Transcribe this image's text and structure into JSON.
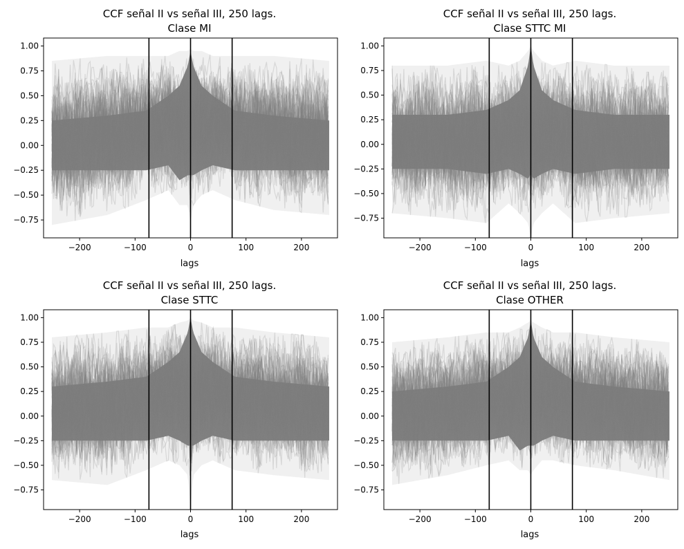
{
  "figure": {
    "background": "#ffffff",
    "trace_color": "#808080",
    "vline_color": "#000000"
  },
  "chart_data": [
    {
      "type": "line",
      "title_line1": "CCF señal II vs señal III, 250 lags.",
      "title_line2": "Clase MI",
      "xlabel": "lags",
      "ylabel": "",
      "xlim": [
        -265,
        265
      ],
      "ylim": [
        -0.93,
        1.08
      ],
      "xticks": [
        -200,
        -100,
        0,
        100,
        200
      ],
      "xtick_labels": [
        "−200",
        "−100",
        "0",
        "100",
        "200"
      ],
      "yticks": [
        -0.75,
        -0.5,
        -0.25,
        0.0,
        0.25,
        0.5,
        0.75,
        1.0
      ],
      "ytick_labels": [
        "−0.75",
        "−0.50",
        "−0.25",
        "0.00",
        "0.25",
        "0.50",
        "0.75",
        "1.00"
      ],
      "vlines": [
        -75,
        0,
        75
      ],
      "lag_range": [
        -250,
        250
      ],
      "envelope_dense": {
        "x": [
          -250,
          -150,
          -80,
          -40,
          -20,
          -5,
          0,
          5,
          20,
          40,
          80,
          150,
          250
        ],
        "upper": [
          0.25,
          0.3,
          0.35,
          0.5,
          0.6,
          0.8,
          0.95,
          0.8,
          0.6,
          0.5,
          0.35,
          0.3,
          0.25
        ],
        "lower": [
          -0.25,
          -0.25,
          -0.25,
          -0.2,
          -0.35,
          -0.3,
          -0.3,
          -0.3,
          -0.25,
          -0.2,
          -0.25,
          -0.25,
          -0.25
        ]
      },
      "envelope_sparse": {
        "x": [
          -250,
          -150,
          -80,
          -40,
          -20,
          -5,
          0,
          5,
          20,
          40,
          80,
          150,
          250
        ],
        "upper": [
          0.85,
          0.9,
          0.9,
          0.9,
          0.95,
          0.95,
          0.97,
          0.95,
          0.95,
          0.9,
          0.9,
          0.9,
          0.85
        ],
        "lower": [
          -0.8,
          -0.7,
          -0.55,
          -0.45,
          -0.6,
          -0.6,
          -0.78,
          -0.6,
          -0.5,
          -0.45,
          -0.55,
          -0.65,
          -0.7
        ]
      }
    },
    {
      "type": "line",
      "title_line1": "CCF señal II vs señal III, 250 lags.",
      "title_line2": "Clase STTC MI",
      "xlabel": "lags",
      "ylabel": "",
      "xlim": [
        -265,
        265
      ],
      "ylim": [
        -0.95,
        1.08
      ],
      "xticks": [
        -200,
        -100,
        0,
        100,
        200
      ],
      "xtick_labels": [
        "−200",
        "−100",
        "0",
        "100",
        "200"
      ],
      "yticks": [
        -0.75,
        -0.5,
        -0.25,
        0.0,
        0.25,
        0.5,
        0.75,
        1.0
      ],
      "ytick_labels": [
        "−0.75",
        "−0.50",
        "−0.25",
        "0.00",
        "0.25",
        "0.50",
        "0.75",
        "1.00"
      ],
      "vlines": [
        -75,
        0,
        75
      ],
      "lag_range": [
        -250,
        250
      ],
      "envelope_dense": {
        "x": [
          -250,
          -150,
          -80,
          -40,
          -20,
          -5,
          0,
          5,
          20,
          40,
          80,
          150,
          250
        ],
        "upper": [
          0.3,
          0.3,
          0.35,
          0.45,
          0.55,
          0.8,
          1.0,
          0.8,
          0.55,
          0.45,
          0.35,
          0.3,
          0.3
        ],
        "lower": [
          -0.25,
          -0.25,
          -0.3,
          -0.25,
          -0.3,
          -0.35,
          -0.3,
          -0.35,
          -0.3,
          -0.25,
          -0.3,
          -0.25,
          -0.25
        ]
      },
      "envelope_sparse": {
        "x": [
          -250,
          -150,
          -80,
          -40,
          -20,
          -5,
          0,
          5,
          20,
          40,
          80,
          150,
          250
        ],
        "upper": [
          0.8,
          0.8,
          0.85,
          0.8,
          0.85,
          0.95,
          1.0,
          0.95,
          0.85,
          0.8,
          0.85,
          0.8,
          0.8
        ],
        "lower": [
          -0.7,
          -0.75,
          -0.8,
          -0.6,
          -0.7,
          -0.8,
          -0.95,
          -0.8,
          -0.7,
          -0.6,
          -0.8,
          -0.75,
          -0.7
        ]
      }
    },
    {
      "type": "line",
      "title_line1": "CCF señal II vs señal III, 250 lags.",
      "title_line2": "Clase STTC",
      "xlabel": "lags",
      "ylabel": "",
      "xlim": [
        -265,
        265
      ],
      "ylim": [
        -0.95,
        1.08
      ],
      "xticks": [
        -200,
        -100,
        0,
        100,
        200
      ],
      "xtick_labels": [
        "−200",
        "−100",
        "0",
        "100",
        "200"
      ],
      "yticks": [
        -0.75,
        -0.5,
        -0.25,
        0.0,
        0.25,
        0.5,
        0.75,
        1.0
      ],
      "ytick_labels": [
        "−0.75",
        "−0.50",
        "−0.25",
        "0.00",
        "0.25",
        "0.50",
        "0.75",
        "1.00"
      ],
      "vlines": [
        -75,
        0,
        75
      ],
      "lag_range": [
        -250,
        250
      ],
      "envelope_dense": {
        "x": [
          -250,
          -150,
          -80,
          -40,
          -20,
          -5,
          0,
          5,
          20,
          40,
          80,
          150,
          250
        ],
        "upper": [
          0.3,
          0.35,
          0.4,
          0.55,
          0.65,
          0.85,
          1.0,
          0.85,
          0.65,
          0.55,
          0.4,
          0.35,
          0.3
        ],
        "lower": [
          -0.25,
          -0.25,
          -0.25,
          -0.2,
          -0.25,
          -0.3,
          -0.3,
          -0.3,
          -0.25,
          -0.2,
          -0.25,
          -0.25,
          -0.25
        ]
      },
      "envelope_sparse": {
        "x": [
          -250,
          -150,
          -80,
          -40,
          -20,
          -5,
          0,
          5,
          20,
          40,
          80,
          150,
          250
        ],
        "upper": [
          0.8,
          0.85,
          0.9,
          0.9,
          0.95,
          0.97,
          1.0,
          0.97,
          0.95,
          0.9,
          0.9,
          0.85,
          0.8
        ],
        "lower": [
          -0.65,
          -0.7,
          -0.55,
          -0.45,
          -0.5,
          -0.6,
          -0.95,
          -0.6,
          -0.5,
          -0.45,
          -0.55,
          -0.6,
          -0.65
        ]
      }
    },
    {
      "type": "line",
      "title_line1": "CCF señal II vs señal III, 250 lags.",
      "title_line2": "Clase OTHER",
      "xlabel": "lags",
      "ylabel": "",
      "xlim": [
        -265,
        265
      ],
      "ylim": [
        -0.95,
        1.08
      ],
      "xticks": [
        -200,
        -100,
        0,
        100,
        200
      ],
      "xtick_labels": [
        "−200",
        "−100",
        "0",
        "100",
        "200"
      ],
      "yticks": [
        -0.75,
        -0.5,
        -0.25,
        0.0,
        0.25,
        0.5,
        0.75,
        1.0
      ],
      "ytick_labels": [
        "−0.75",
        "−0.50",
        "−0.25",
        "0.00",
        "0.25",
        "0.50",
        "0.75",
        "1.00"
      ],
      "vlines": [
        -75,
        0,
        75
      ],
      "lag_range": [
        -250,
        250
      ],
      "envelope_dense": {
        "x": [
          -250,
          -150,
          -80,
          -40,
          -20,
          -5,
          0,
          5,
          20,
          40,
          80,
          150,
          250
        ],
        "upper": [
          0.25,
          0.3,
          0.35,
          0.5,
          0.6,
          0.8,
          0.97,
          0.8,
          0.6,
          0.5,
          0.35,
          0.3,
          0.25
        ],
        "lower": [
          -0.25,
          -0.25,
          -0.25,
          -0.2,
          -0.35,
          -0.3,
          -0.3,
          -0.3,
          -0.25,
          -0.2,
          -0.25,
          -0.25,
          -0.25
        ]
      },
      "envelope_sparse": {
        "x": [
          -250,
          -150,
          -80,
          -40,
          -20,
          -5,
          0,
          5,
          20,
          40,
          80,
          150,
          250
        ],
        "upper": [
          0.75,
          0.8,
          0.85,
          0.85,
          0.9,
          0.95,
          0.97,
          0.95,
          0.9,
          0.85,
          0.85,
          0.8,
          0.75
        ],
        "lower": [
          -0.7,
          -0.6,
          -0.5,
          -0.45,
          -0.55,
          -0.55,
          -0.6,
          -0.55,
          -0.45,
          -0.45,
          -0.5,
          -0.55,
          -0.65
        ]
      }
    }
  ]
}
